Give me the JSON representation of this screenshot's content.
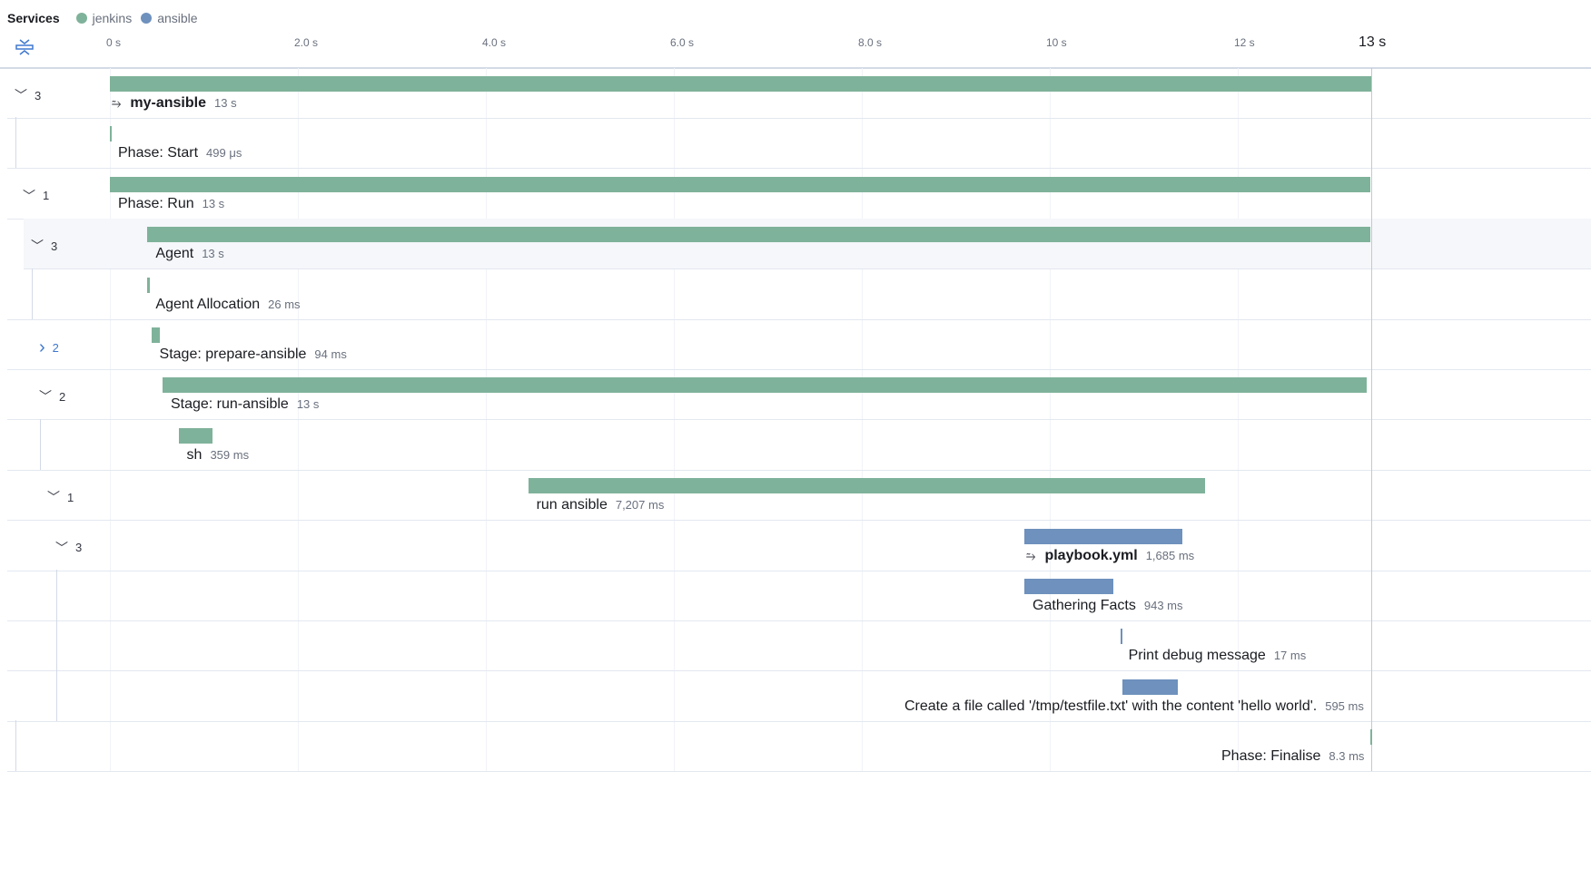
{
  "legend": {
    "title": "Services",
    "services": [
      {
        "name": "jenkins",
        "color": "#7fb29a"
      },
      {
        "name": "ansible",
        "color": "#6e91bd"
      }
    ]
  },
  "axis": {
    "unit_max_seconds": 13.42,
    "ticks": [
      {
        "value": 0,
        "label": "0 s"
      },
      {
        "value": 2,
        "label": "2.0 s"
      },
      {
        "value": 4,
        "label": "4.0 s"
      },
      {
        "value": 6,
        "label": "6.0 s"
      },
      {
        "value": 8,
        "label": "8.0 s"
      },
      {
        "value": 10,
        "label": "10 s"
      },
      {
        "value": 12,
        "label": "12 s"
      }
    ],
    "end_label": "13 s"
  },
  "spans": [
    {
      "name": "my-ansible",
      "duration": "13 s",
      "start_s": 0,
      "dur_s": 13.42,
      "service": "jenkins",
      "depth": 0,
      "children": "3",
      "expanded": true,
      "bold": true,
      "icon": "transaction-merge-icon"
    },
    {
      "name": "Phase: Start",
      "duration": "499 μs",
      "start_s": 0,
      "dur_s": 0.0005,
      "service": "jenkins",
      "depth": 1
    },
    {
      "name": "Phase: Run",
      "duration": "13 s",
      "start_s": 0,
      "dur_s": 13.41,
      "service": "jenkins",
      "depth": 1,
      "children": "1",
      "expanded": true
    },
    {
      "name": "Agent",
      "duration": "13 s",
      "start_s": 0.4,
      "dur_s": 13.01,
      "service": "jenkins",
      "depth": 2,
      "children": "3",
      "expanded": true,
      "highlighted": true
    },
    {
      "name": "Agent Allocation",
      "duration": "26 ms",
      "start_s": 0.4,
      "dur_s": 0.026,
      "service": "jenkins",
      "depth": 3
    },
    {
      "name": "Stage: prepare-ansible",
      "duration": "94 ms",
      "start_s": 0.44,
      "dur_s": 0.094,
      "service": "jenkins",
      "depth": 3,
      "children": "2",
      "expanded": false
    },
    {
      "name": "Stage: run-ansible",
      "duration": "13 s",
      "start_s": 0.56,
      "dur_s": 12.81,
      "service": "jenkins",
      "depth": 3,
      "children": "2",
      "expanded": true
    },
    {
      "name": "sh",
      "duration": "359 ms",
      "start_s": 0.73,
      "dur_s": 0.359,
      "service": "jenkins",
      "depth": 4
    },
    {
      "name": "run ansible",
      "duration": "7,207 ms",
      "start_s": 4.45,
      "dur_s": 7.207,
      "service": "jenkins",
      "depth": 4,
      "children": "1",
      "expanded": true
    },
    {
      "name": "playbook.yml",
      "duration": "1,685 ms",
      "start_s": 9.73,
      "dur_s": 1.685,
      "service": "ansible",
      "depth": 5,
      "children": "3",
      "expanded": true,
      "bold": true,
      "icon": "transaction-merge-icon"
    },
    {
      "name": "Gathering Facts",
      "duration": "943 ms",
      "start_s": 9.73,
      "dur_s": 0.943,
      "service": "ansible",
      "depth": 6
    },
    {
      "name": "Print debug message",
      "duration": "17 ms",
      "start_s": 10.75,
      "dur_s": 0.017,
      "service": "ansible",
      "depth": 6
    },
    {
      "name": "Create a file called '/tmp/testfile.txt' with the content 'hello world'.",
      "duration": "595 ms",
      "start_s": 10.77,
      "dur_s": 0.595,
      "service": "ansible",
      "depth": 6
    },
    {
      "name": "Phase: Finalise",
      "duration": "8.3 ms",
      "start_s": 13.41,
      "dur_s": 0.0083,
      "service": "jenkins",
      "depth": 1
    }
  ]
}
